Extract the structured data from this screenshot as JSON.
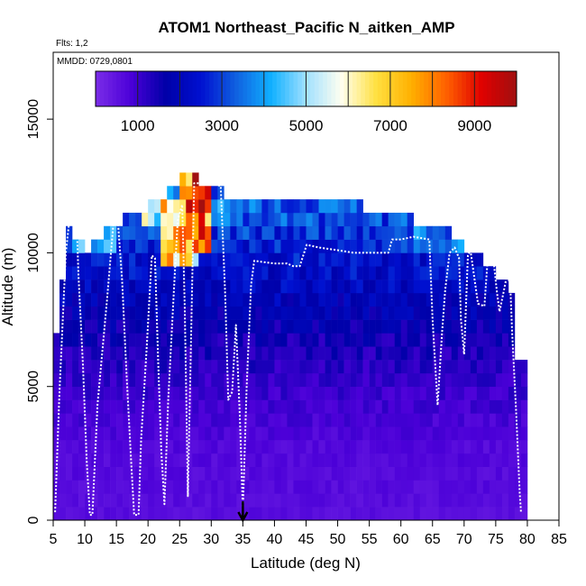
{
  "chart_data": {
    "type": "heatmap",
    "title": "ATOM1 Northeast_Pacific N_aitken_AMP",
    "flights_label": "Flts: 1,2",
    "dates_label": "MMDD: 0729,0801",
    "xlabel": "Latitude (deg N)",
    "ylabel": "Altitude (m)",
    "xlim": [
      5,
      85
    ],
    "ylim": [
      0,
      17500
    ],
    "x_ticks": [
      "5",
      "10",
      "15",
      "20",
      "25",
      "30",
      "35",
      "40",
      "45",
      "50",
      "55",
      "60",
      "65",
      "70",
      "75",
      "80",
      "85"
    ],
    "y_ticks": [
      "0",
      "5000",
      "10000",
      "15000"
    ],
    "marker_latitude": 35,
    "colorbar": {
      "range": [
        0,
        10000
      ],
      "tick_labels": [
        "1000",
        "3000",
        "5000",
        "7000",
        "9000"
      ],
      "colors": [
        "#7b2de8",
        "#4b00d8",
        "#0000a8",
        "#0010d0",
        "#1060e0",
        "#10b0ff",
        "#a0e0ff",
        "#fffff0",
        "#ffe040",
        "#ffb000",
        "#ff6000",
        "#e00000",
        "#a01010"
      ]
    },
    "cell_size": {
      "lat_deg": 1,
      "alt_m": 500
    },
    "column_tops_m": [
      {
        "lat": 5,
        "top": 7000
      },
      {
        "lat": 7,
        "top": 11000
      },
      {
        "lat": 10,
        "top": 10000
      },
      {
        "lat": 14,
        "top": 11000
      },
      {
        "lat": 21,
        "top": 12000
      },
      {
        "lat": 26,
        "top": 13000
      },
      {
        "lat": 33,
        "top": 12000
      },
      {
        "lat": 50,
        "top": 12000
      },
      {
        "lat": 56,
        "top": 11500
      },
      {
        "lat": 66,
        "top": 11000
      },
      {
        "lat": 71,
        "top": 10000
      },
      {
        "lat": 77,
        "top": 8500
      },
      {
        "lat": 78,
        "top": 6000
      }
    ],
    "concentration_profile": [
      {
        "alt": 0,
        "value": 600
      },
      {
        "alt": 2500,
        "value": 700
      },
      {
        "alt": 5000,
        "value": 1100
      },
      {
        "alt": 7000,
        "value": 1600
      },
      {
        "alt": 8500,
        "value": 2100
      },
      {
        "alt": 10000,
        "value": 2600
      },
      {
        "alt": 12000,
        "value": 3500
      }
    ],
    "hotspots": [
      {
        "lat": [
          25,
          30
        ],
        "alt": [
          10000,
          13000
        ],
        "value": 8800
      },
      {
        "lat": [
          22,
          28
        ],
        "alt": [
          9500,
          12000
        ],
        "value": 6800
      },
      {
        "lat": [
          19,
          24
        ],
        "alt": [
          11000,
          12000
        ],
        "value": 5500
      },
      {
        "lat": [
          8,
          15
        ],
        "alt": [
          10000,
          11500
        ],
        "value": 4500
      },
      {
        "lat": [
          59,
          72
        ],
        "alt": [
          10000,
          11000
        ],
        "value": 3600
      },
      {
        "lat": [
          30,
          33
        ],
        "alt": [
          11000,
          12000
        ],
        "value": 3800
      }
    ],
    "flight_track": [
      [
        5.3,
        300
      ],
      [
        6,
        4800
      ],
      [
        7,
        10000
      ],
      [
        7.6,
        11300
      ],
      [
        8.7,
        11300
      ],
      [
        9,
        9200
      ],
      [
        9.7,
        5800
      ],
      [
        10.3,
        2200
      ],
      [
        10.8,
        200
      ],
      [
        11.2,
        200
      ],
      [
        12,
        4300
      ],
      [
        13.5,
        8200
      ],
      [
        14.6,
        11300
      ],
      [
        15.2,
        11300
      ],
      [
        15.9,
        9000
      ],
      [
        16.6,
        5500
      ],
      [
        17.3,
        2300
      ],
      [
        17.8,
        200
      ],
      [
        18.5,
        200
      ],
      [
        18.9,
        3000
      ],
      [
        19.8,
        6500
      ],
      [
        20.6,
        9900
      ],
      [
        21.1,
        9800
      ],
      [
        21.6,
        6000
      ],
      [
        22.1,
        2600
      ],
      [
        22.6,
        600
      ],
      [
        23.2,
        4500
      ],
      [
        24.1,
        8600
      ],
      [
        24.7,
        11200
      ],
      [
        25.4,
        11800
      ],
      [
        25.8,
        8000
      ],
      [
        26.1,
        3800
      ],
      [
        26.3,
        900
      ],
      [
        27.3,
        12600
      ],
      [
        30,
        12600
      ],
      [
        31.5,
        12500
      ],
      [
        32.2,
        8500
      ],
      [
        32.7,
        4500
      ],
      [
        33.3,
        4800
      ],
      [
        33.9,
        7300
      ],
      [
        34.5,
        4000
      ],
      [
        35,
        400
      ],
      [
        35.6,
        5000
      ],
      [
        36.3,
        8800
      ],
      [
        36.8,
        9700
      ],
      [
        40,
        9600
      ],
      [
        42,
        9600
      ],
      [
        43,
        9500
      ],
      [
        44,
        9500
      ],
      [
        45.1,
        10300
      ],
      [
        47,
        10200
      ],
      [
        50,
        10100
      ],
      [
        52.5,
        10000
      ],
      [
        55,
        10000
      ],
      [
        58,
        10000
      ],
      [
        58.6,
        10500
      ],
      [
        60,
        10500
      ],
      [
        62,
        10600
      ],
      [
        64.5,
        10500
      ],
      [
        65,
        7500
      ],
      [
        65.8,
        4300
      ],
      [
        66.5,
        7000
      ],
      [
        67,
        8600
      ],
      [
        67.7,
        10000
      ],
      [
        68.5,
        10200
      ],
      [
        69.2,
        9800
      ],
      [
        69.5,
        7500
      ],
      [
        70,
        6200
      ],
      [
        70.6,
        9900
      ],
      [
        71,
        10100
      ],
      [
        72.2,
        8100
      ],
      [
        73.2,
        8000
      ],
      [
        73.7,
        9700
      ],
      [
        74.7,
        9600
      ],
      [
        75.2,
        8500
      ],
      [
        75.6,
        7800
      ],
      [
        76.3,
        8600
      ],
      [
        76.8,
        9200
      ],
      [
        77.3,
        8800
      ],
      [
        77.6,
        7000
      ],
      [
        78.2,
        4200
      ],
      [
        78.8,
        1000
      ],
      [
        79,
        300
      ]
    ]
  }
}
